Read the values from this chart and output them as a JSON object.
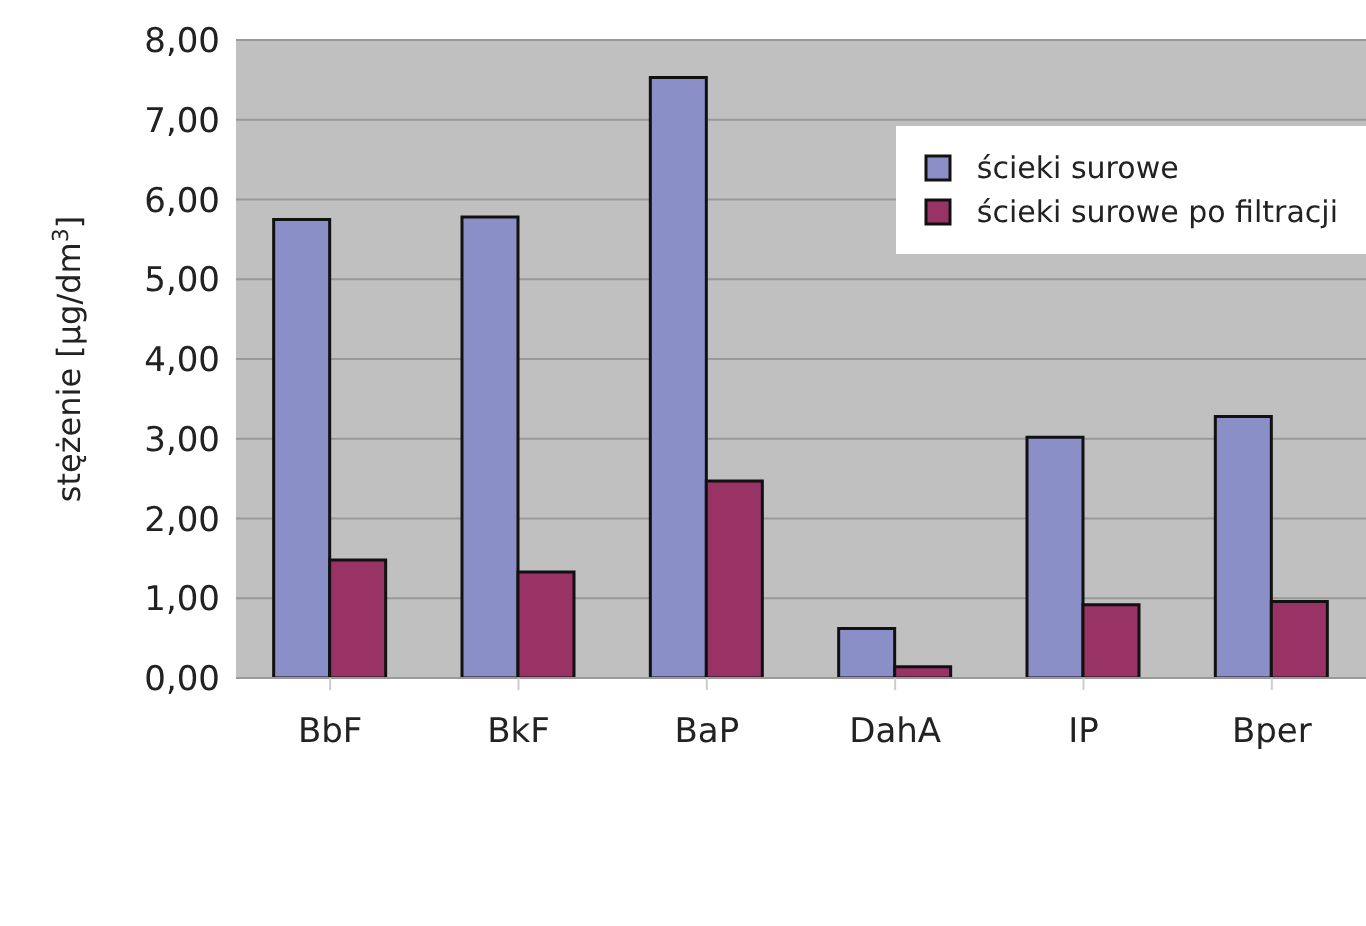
{
  "chart_data": {
    "type": "bar",
    "ylabel": "stężenie [µg/dm$^{3}$]",
    "categories": [
      "BbF",
      "BkF",
      "BaP",
      "DahA",
      "IP",
      "Bper"
    ],
    "series": [
      {
        "name": "ścieki surowe",
        "color": "#8b8fc8",
        "values": [
          5.75,
          5.78,
          7.53,
          0.62,
          3.02,
          3.28
        ]
      },
      {
        "name": "ścieki surowe po filtracji",
        "color": "#993366",
        "values": [
          1.48,
          1.33,
          2.47,
          0.14,
          0.92,
          0.96
        ]
      }
    ],
    "ylim": [
      0,
      8
    ],
    "yticks": [
      {
        "value": 0,
        "label": "0,00"
      },
      {
        "value": 1,
        "label": "1,00"
      },
      {
        "value": 2,
        "label": "2,00"
      },
      {
        "value": 3,
        "label": "3,00"
      },
      {
        "value": 4,
        "label": "4,00"
      },
      {
        "value": 5,
        "label": "5,00"
      },
      {
        "value": 6,
        "label": "6,00"
      },
      {
        "value": 7,
        "label": "7,00"
      },
      {
        "value": 8,
        "label": "8,00"
      }
    ],
    "grid": "y",
    "legend": "top right"
  }
}
